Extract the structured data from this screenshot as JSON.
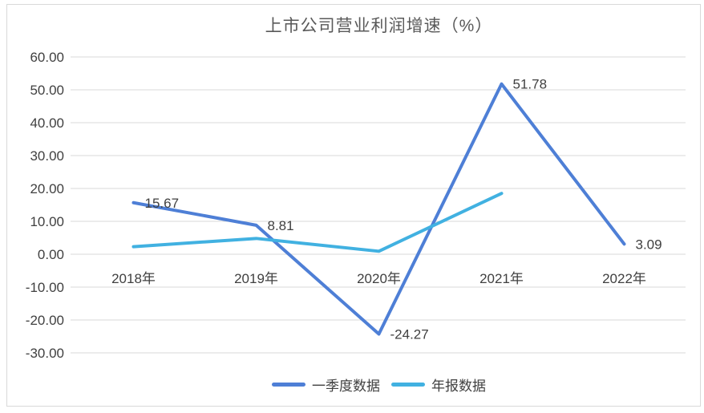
{
  "title": "上市公司营业利润增速（%）",
  "chart_data": {
    "type": "line",
    "title": "上市公司营业利润增速（%）",
    "categories": [
      "2018年",
      "2019年",
      "2020年",
      "2021年",
      "2022年"
    ],
    "series": [
      {
        "name": "一季度数据",
        "color": "#4e7fd6",
        "values": [
          15.67,
          8.81,
          -24.27,
          51.78,
          3.09
        ],
        "labels": [
          "15.67",
          "8.81",
          "-24.27",
          "51.78",
          "3.09"
        ]
      },
      {
        "name": "年报数据",
        "color": "#41b1e1",
        "values": [
          2.3,
          4.8,
          0.9,
          18.5,
          null
        ],
        "labels": []
      }
    ],
    "ylim": [
      -30,
      60
    ],
    "ytick_step": 10,
    "ytick_labels": [
      "60.00",
      "50.00",
      "40.00",
      "30.00",
      "20.00",
      "10.00",
      "0.00",
      "-10.00",
      "-20.00",
      "-30.00"
    ],
    "grid": true,
    "legend_position": "bottom"
  },
  "colors": {
    "gridline": "#d9d9d9",
    "frame_border": "#d9d9d9",
    "axis_text": "#404040",
    "data_label_text": "#404040",
    "title_text": "#595959",
    "series_q1": "#4e7fd6",
    "series_annual": "#41b1e1"
  }
}
